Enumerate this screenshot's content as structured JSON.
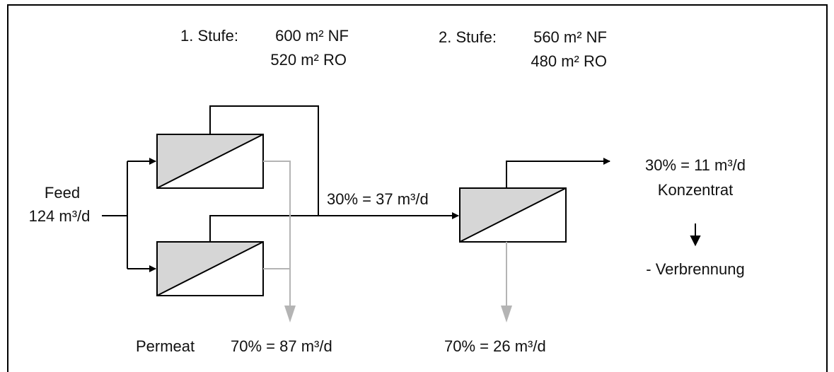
{
  "stage1": {
    "title": "1. Stufe:",
    "nf_area": "600 m² NF",
    "ro_area": "520 m² RO"
  },
  "stage2": {
    "title": "2. Stufe:",
    "nf_area": "560 m² NF",
    "ro_area": "480 m² RO"
  },
  "feed": {
    "label": "Feed",
    "flow": "124 m³/d"
  },
  "intermediate_flow": "30% = 37 m³/d",
  "concentrate": {
    "flow": "30% = 11 m³/d",
    "label": "Konzentrat",
    "destination": "- Verbrennung"
  },
  "permeate": {
    "label": "Permeat",
    "stage1_flow": "70% = 87 m³/d",
    "stage2_flow": "70% = 26 m³/d"
  },
  "colors": {
    "line": "#000000",
    "permeate_line": "#b4b4b4",
    "module_fill": "#d6d6d6"
  }
}
